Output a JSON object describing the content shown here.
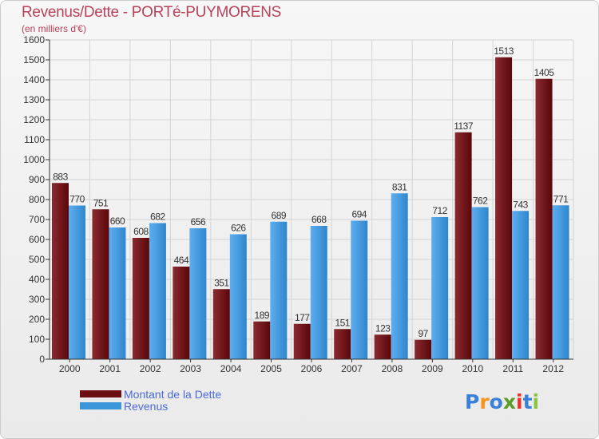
{
  "title": "Revenus/Dette - PORTé-PUYMORENS",
  "subtitle": "(en milliers d'€)",
  "logo": {
    "text": "Proxiti",
    "colors": [
      "#3a7fd9",
      "#f7941d",
      "#3a7fd9",
      "#5a9c28",
      "#e6322a",
      "#3a7fd9",
      "#8bc43f"
    ]
  },
  "chart_data": {
    "type": "bar",
    "title": "Revenus/Dette - PORTé-PUYMORENS",
    "subtitle": "(en milliers d'€)",
    "categories": [
      "2000",
      "2001",
      "2002",
      "2003",
      "2004",
      "2005",
      "2006",
      "2007",
      "2008",
      "2009",
      "2010",
      "2011",
      "2012"
    ],
    "series": [
      {
        "name": "Montant de la Dette",
        "color": "#6b0f13",
        "values": [
          883,
          751,
          608,
          464,
          351,
          189,
          177,
          151,
          123,
          97,
          1137,
          1513,
          1405
        ]
      },
      {
        "name": "Revenus",
        "color": "#3a95d9",
        "values": [
          770,
          660,
          682,
          656,
          626,
          689,
          668,
          694,
          831,
          712,
          762,
          743,
          771
        ]
      }
    ],
    "ylim": [
      0,
      1600
    ],
    "yticks": [
      0,
      100,
      200,
      300,
      400,
      500,
      600,
      700,
      800,
      900,
      1000,
      1100,
      1200,
      1300,
      1400,
      1500,
      1600
    ],
    "grid": true,
    "legend": "bottom-left"
  }
}
